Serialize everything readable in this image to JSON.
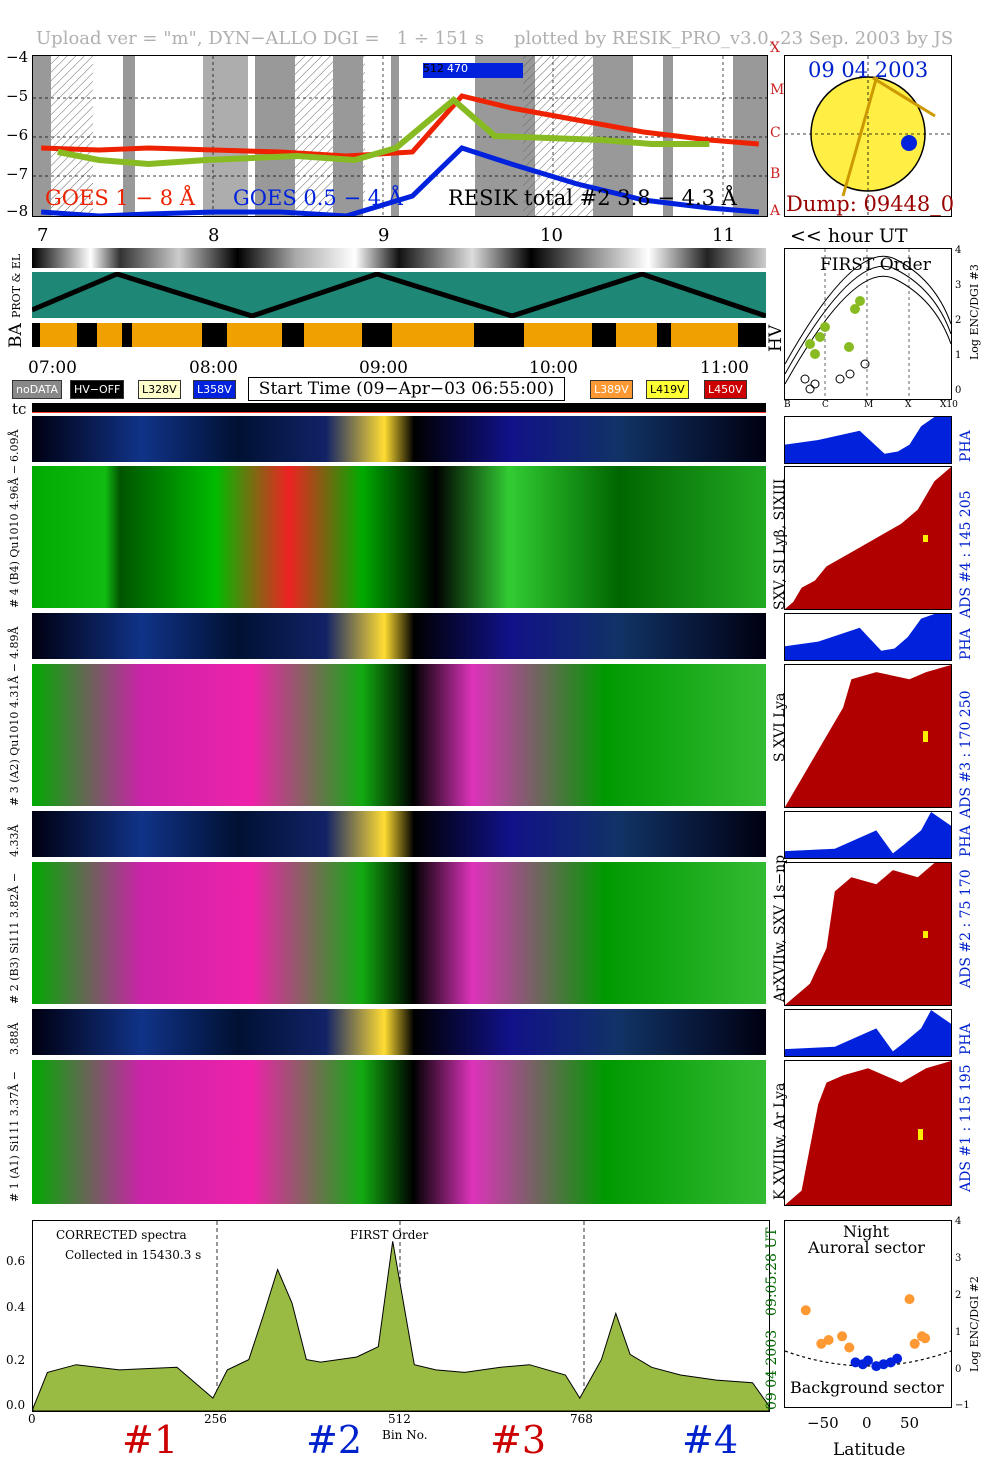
{
  "header": {
    "left": "Upload ver = \"m\", DYN−ALLO DGI =   1 ÷ 151 s",
    "right": "plotted by RESIK_PRO_v3.0, 23 Sep. 2003 by JS"
  },
  "goes": {
    "yticks": [
      "−4",
      "−5",
      "−6",
      "−7",
      "−8"
    ],
    "classes": [
      "X",
      "M",
      "C",
      "B",
      "A"
    ],
    "legend_goes1": "GOES 1 − 8 Å",
    "legend_goes05": "GOES 0.5 − 4 Å",
    "legend_resik": "RESIK total #2  3.8 − 4.3 Å",
    "marker": "512",
    "marker2": "470",
    "hour_ticks": [
      "7",
      "8",
      "9",
      "10",
      "11"
    ],
    "hour_label": "<< hour UT",
    "colors": {
      "goes1": "#ee2200",
      "goes05": "#0022dd",
      "resik": "#88bb22"
    }
  },
  "sun": {
    "date": "09 04 2003",
    "dump": "Dump: 09448_0",
    "colors": {
      "date": "#0022cc",
      "dump": "#990000",
      "disk": "#ffee44"
    }
  },
  "status": {
    "prot_label": "PROT & EL",
    "ba_label": "BA",
    "hv_label": "HV",
    "time_ticks": [
      "07:00",
      "08:00",
      "09:00",
      "10:00",
      "11:00"
    ],
    "legend": [
      {
        "label": "noDATA",
        "color": "#888888",
        "text": "#ffffff"
      },
      {
        "label": "HV−OFF",
        "color": "#000000",
        "text": "#ffffff"
      },
      {
        "label": "L328V",
        "color": "#ffffcc",
        "text": "#000000"
      },
      {
        "label": "L358V",
        "color": "#0022dd",
        "text": "#ffffff"
      }
    ],
    "legend_right": [
      {
        "label": "L389V",
        "color": "#ff9933",
        "text": "#ffffff"
      },
      {
        "label": "L419V",
        "color": "#ffff33",
        "text": "#000000"
      },
      {
        "label": "L450V",
        "color": "#cc0000",
        "text": "#ffffff"
      }
    ],
    "start_time": "Start Time (09−Apr−03 06:55:00)",
    "tc_label": "tc"
  },
  "first_order": {
    "title": "FIRST Order",
    "ylabel": "Log ENC/DGI #3",
    "xticks": [
      "B",
      "C",
      "M",
      "X",
      "X10"
    ],
    "yticks": [
      "4",
      "3",
      "2",
      "1",
      "0"
    ]
  },
  "channels": [
    {
      "pha_label": "6.09Å",
      "label": "# 4 (B4) Qu1010  4.96Å −",
      "lines": "SXV, SI Lyβ, SIXIII",
      "ads": "ADS #4 :   145 205",
      "pha": "PHA"
    },
    {
      "pha_label": "4.89Å",
      "label": "# 3 (A2) Qu1010  4.31Å −",
      "lines": "S XVI Lya",
      "ads": "ADS #3 :   170 250",
      "pha": "PHA"
    },
    {
      "pha_label": "4.33Å",
      "label": "# 2 (B3) Si111  3.82Å −",
      "lines": "ArXVIIw, SXV 1s−np",
      "ads": "ADS #2 :   75 170",
      "pha": "PHA"
    },
    {
      "pha_label": "3.88Å",
      "label": "# 1 (A1) Si111  3.37Å −",
      "lines": "K XVIIIw, Ar Lya",
      "ads": "ADS #1 :   115 195",
      "pha": "PHA"
    }
  ],
  "spectrum": {
    "title_left": "CORRECTED spectra",
    "collected": "Collected in 15430.3 s",
    "title_mid": "FIRST Order",
    "xlabel": "Bin No.",
    "xticks": [
      "0",
      "256",
      "512",
      "768"
    ],
    "yticks": [
      "0.6",
      "0.4",
      "0.2",
      "0.0"
    ],
    "side_time": "09:05:28 UT",
    "side_date": "09 04 2003",
    "channel_labels": [
      {
        "label": "#1",
        "color": "#cc0000"
      },
      {
        "label": "#2",
        "color": "#0022cc"
      },
      {
        "label": "#3",
        "color": "#cc0000"
      },
      {
        "label": "#4",
        "color": "#0022cc"
      }
    ]
  },
  "latitude": {
    "title1": "Night",
    "title2": "Auroral sector",
    "bottom": "Background sector",
    "xlabel": "Latitude",
    "ylabel": "Log ENC/DGI #2",
    "xticks": [
      "−50",
      "0",
      "50"
    ],
    "yticks": [
      "4",
      "3",
      "2",
      "1",
      "0",
      "−1"
    ]
  },
  "chart_data": [
    {
      "type": "line",
      "title": "",
      "xlabel": "hour UT",
      "ylabel": "",
      "xlim": [
        6.9,
        11.35
      ],
      "ylim": [
        -8,
        -4
      ],
      "series": [
        {
          "name": "GOES 1 − 8 Å",
          "x": [
            6.95,
            7.3,
            7.6,
            8.0,
            8.4,
            8.8,
            9.2,
            9.5,
            9.8,
            10.2,
            10.6,
            11.0,
            11.3
          ],
          "y": [
            -6.3,
            -6.35,
            -6.3,
            -6.35,
            -6.4,
            -6.5,
            -6.4,
            -5.0,
            -5.3,
            -5.6,
            -5.9,
            -6.1,
            -6.2
          ]
        },
        {
          "name": "GOES 0.5 − 4 Å",
          "x": [
            6.95,
            7.3,
            7.6,
            8.0,
            8.4,
            8.8,
            9.2,
            9.5,
            9.8,
            10.2,
            10.6,
            11.0,
            11.3
          ],
          "y": [
            -7.9,
            -8.0,
            -7.95,
            -7.9,
            -7.9,
            -8.0,
            -7.5,
            -6.3,
            -6.7,
            -7.2,
            -7.6,
            -7.8,
            -7.9
          ]
        },
        {
          "name": "RESIK total #2  3.8 − 4.3 Å",
          "x": [
            7.05,
            7.3,
            7.6,
            7.95,
            8.5,
            8.85,
            9.1,
            9.45,
            9.7,
            10.35,
            10.65,
            11.0
          ],
          "y": [
            -6.4,
            -6.6,
            -6.7,
            -6.6,
            -6.5,
            -6.6,
            -6.3,
            -5.1,
            -6.0,
            -6.1,
            -6.2,
            -6.2
          ]
        }
      ]
    },
    {
      "type": "line",
      "title": "",
      "xlabel": "Bin No.",
      "ylabel": "",
      "xlim": [
        0,
        1023
      ],
      "ylim": [
        0,
        0.7
      ],
      "series": [
        {
          "name": "CORRECTED spectra",
          "x": [
            0,
            20,
            60,
            120,
            200,
            250,
            270,
            300,
            320,
            340,
            360,
            380,
            400,
            450,
            480,
            500,
            530,
            560,
            600,
            650,
            690,
            740,
            760,
            790,
            810,
            830,
            860,
            900,
            950,
            1000,
            1023
          ],
          "y": [
            0.01,
            0.15,
            0.18,
            0.16,
            0.17,
            0.05,
            0.16,
            0.2,
            0.37,
            0.55,
            0.42,
            0.2,
            0.19,
            0.21,
            0.25,
            0.66,
            0.18,
            0.16,
            0.15,
            0.17,
            0.18,
            0.14,
            0.05,
            0.2,
            0.38,
            0.22,
            0.17,
            0.14,
            0.12,
            0.11,
            0.02
          ]
        }
      ]
    },
    {
      "type": "scatter",
      "title": "",
      "xlabel": "Latitude",
      "ylabel": "Log ENC/DGI #2",
      "xlim": [
        -80,
        80
      ],
      "ylim": [
        -1,
        4
      ],
      "series": [
        {
          "name": "Auroral sector",
          "x": [
            -60,
            -45,
            -38,
            -25,
            -18,
            40,
            45,
            52,
            55
          ],
          "y": [
            1.6,
            0.7,
            0.8,
            0.9,
            0.6,
            1.9,
            0.7,
            0.9,
            0.85
          ]
        },
        {
          "name": "Background sector",
          "x": [
            -12,
            -5,
            0,
            8,
            15,
            22,
            28
          ],
          "y": [
            0.2,
            0.15,
            0.25,
            0.1,
            0.15,
            0.2,
            0.3
          ]
        }
      ]
    }
  ]
}
